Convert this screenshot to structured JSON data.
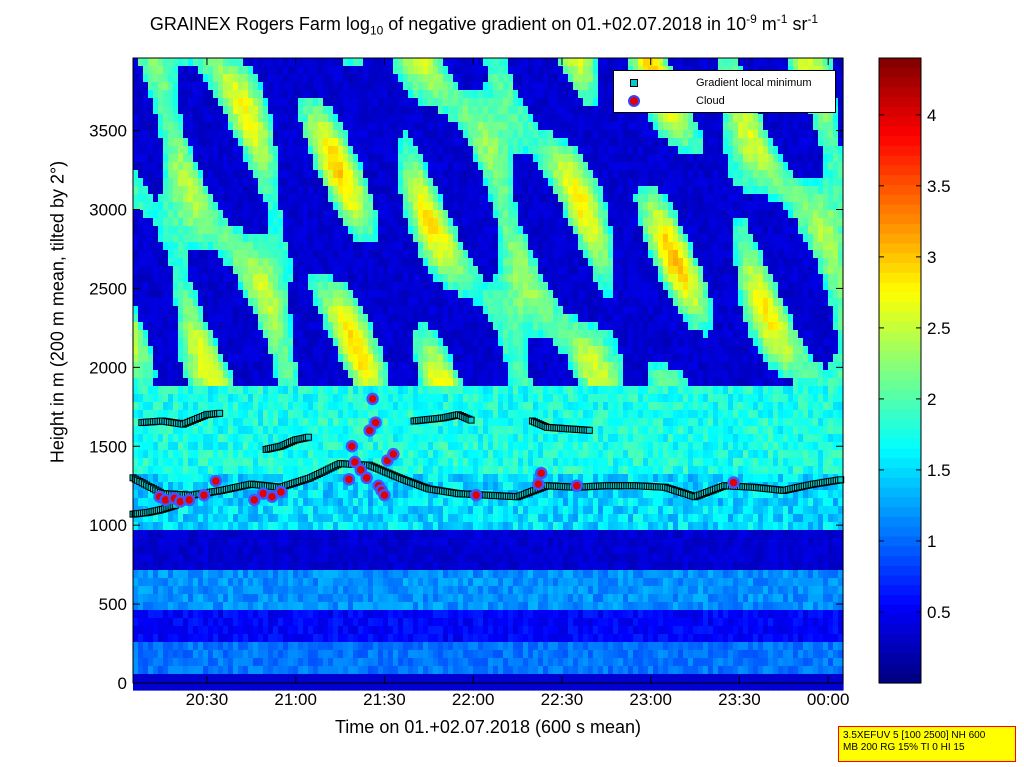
{
  "chart_data": {
    "type": "heatmap",
    "title_parts": {
      "main": "GRAINEX Rogers Farm log",
      "sub": "10",
      "rest": " of negative gradient on 01.+02.07.2018 in 10",
      "exp1": "-9",
      "unit_mid": " m",
      "exp2": "-1",
      "unit_end": " sr",
      "exp3": "-1"
    },
    "xlabel": "Time on 01.+02.07.2018 (600 s mean)",
    "ylabel": "Height in m (200 m mean, tilted by 2°)",
    "x_range": [
      "20:05",
      "00:05"
    ],
    "x_ticks": [
      "20:30",
      "21:00",
      "21:30",
      "22:00",
      "22:30",
      "23:00",
      "23:30",
      "00:00"
    ],
    "y_range": [
      0,
      3960
    ],
    "y_ticks": [
      0,
      500,
      1000,
      1500,
      2000,
      2500,
      3000,
      3500
    ],
    "colorbar": {
      "range": [
        0,
        4.4
      ],
      "ticks": [
        0.5,
        1,
        1.5,
        2,
        2.5,
        3,
        3.5,
        4
      ],
      "colormap": "jet"
    },
    "legend": {
      "position": "top-right",
      "items": [
        {
          "marker": "square",
          "color": "#00cccc",
          "label": "Gradient local minimum"
        },
        {
          "marker": "circle",
          "color": "#e00000",
          "label": "Cloud"
        }
      ]
    },
    "gradient_minimum_tracks": [
      {
        "t": [
          "20:05",
          "20:15",
          "20:25",
          "20:35",
          "20:45",
          "20:55",
          "21:05",
          "21:15",
          "21:25",
          "21:35",
          "21:45",
          "21:55",
          "22:05",
          "22:15",
          "22:25",
          "22:35",
          "22:45",
          "22:55",
          "23:05",
          "23:15",
          "23:25",
          "23:35",
          "23:45",
          "23:55",
          "00:05"
        ],
        "h": [
          1300,
          1200,
          1190,
          1220,
          1260,
          1240,
          1300,
          1390,
          1380,
          1300,
          1230,
          1200,
          1190,
          1180,
          1250,
          1240,
          1250,
          1250,
          1240,
          1180,
          1250,
          1240,
          1220,
          1260,
          1290
        ]
      },
      {
        "t": [
          "20:05",
          "20:10",
          "20:15",
          "20:20"
        ],
        "h": [
          1070,
          1080,
          1100,
          1130
        ]
      },
      {
        "t": [
          "20:08",
          "20:15",
          "20:22",
          "20:30",
          "20:35"
        ],
        "h": [
          1650,
          1660,
          1640,
          1700,
          1710
        ]
      },
      {
        "t": [
          "20:50",
          "20:55",
          "21:00",
          "21:05"
        ],
        "h": [
          1480,
          1500,
          1540,
          1560
        ]
      },
      {
        "t": [
          "21:40",
          "21:50",
          "21:55",
          "22:00"
        ],
        "h": [
          1660,
          1680,
          1700,
          1660
        ]
      },
      {
        "t": [
          "22:20",
          "22:25",
          "22:40"
        ],
        "h": [
          1660,
          1620,
          1600
        ]
      }
    ],
    "cloud_points": {
      "t": [
        "20:14",
        "20:16",
        "20:19",
        "20:21",
        "20:24",
        "20:29",
        "20:33",
        "20:46",
        "20:49",
        "20:52",
        "20:55",
        "21:18",
        "21:19",
        "21:20",
        "21:22",
        "21:24",
        "21:25",
        "21:26",
        "21:27",
        "21:28",
        "21:29",
        "21:30",
        "21:31",
        "21:33",
        "22:01",
        "22:22",
        "22:23",
        "22:35",
        "23:28"
      ],
      "h": [
        1180,
        1160,
        1170,
        1150,
        1160,
        1190,
        1280,
        1160,
        1200,
        1180,
        1210,
        1290,
        1500,
        1400,
        1350,
        1300,
        1600,
        1800,
        1650,
        1250,
        1220,
        1190,
        1410,
        1450,
        1190,
        1260,
        1330,
        1250,
        1270
      ]
    },
    "info_box": {
      "line1": "3.5XEFUV 5 [100 2500] NH 600",
      "line2": "MB 200 RG 15% TI 0 HI 15"
    }
  }
}
